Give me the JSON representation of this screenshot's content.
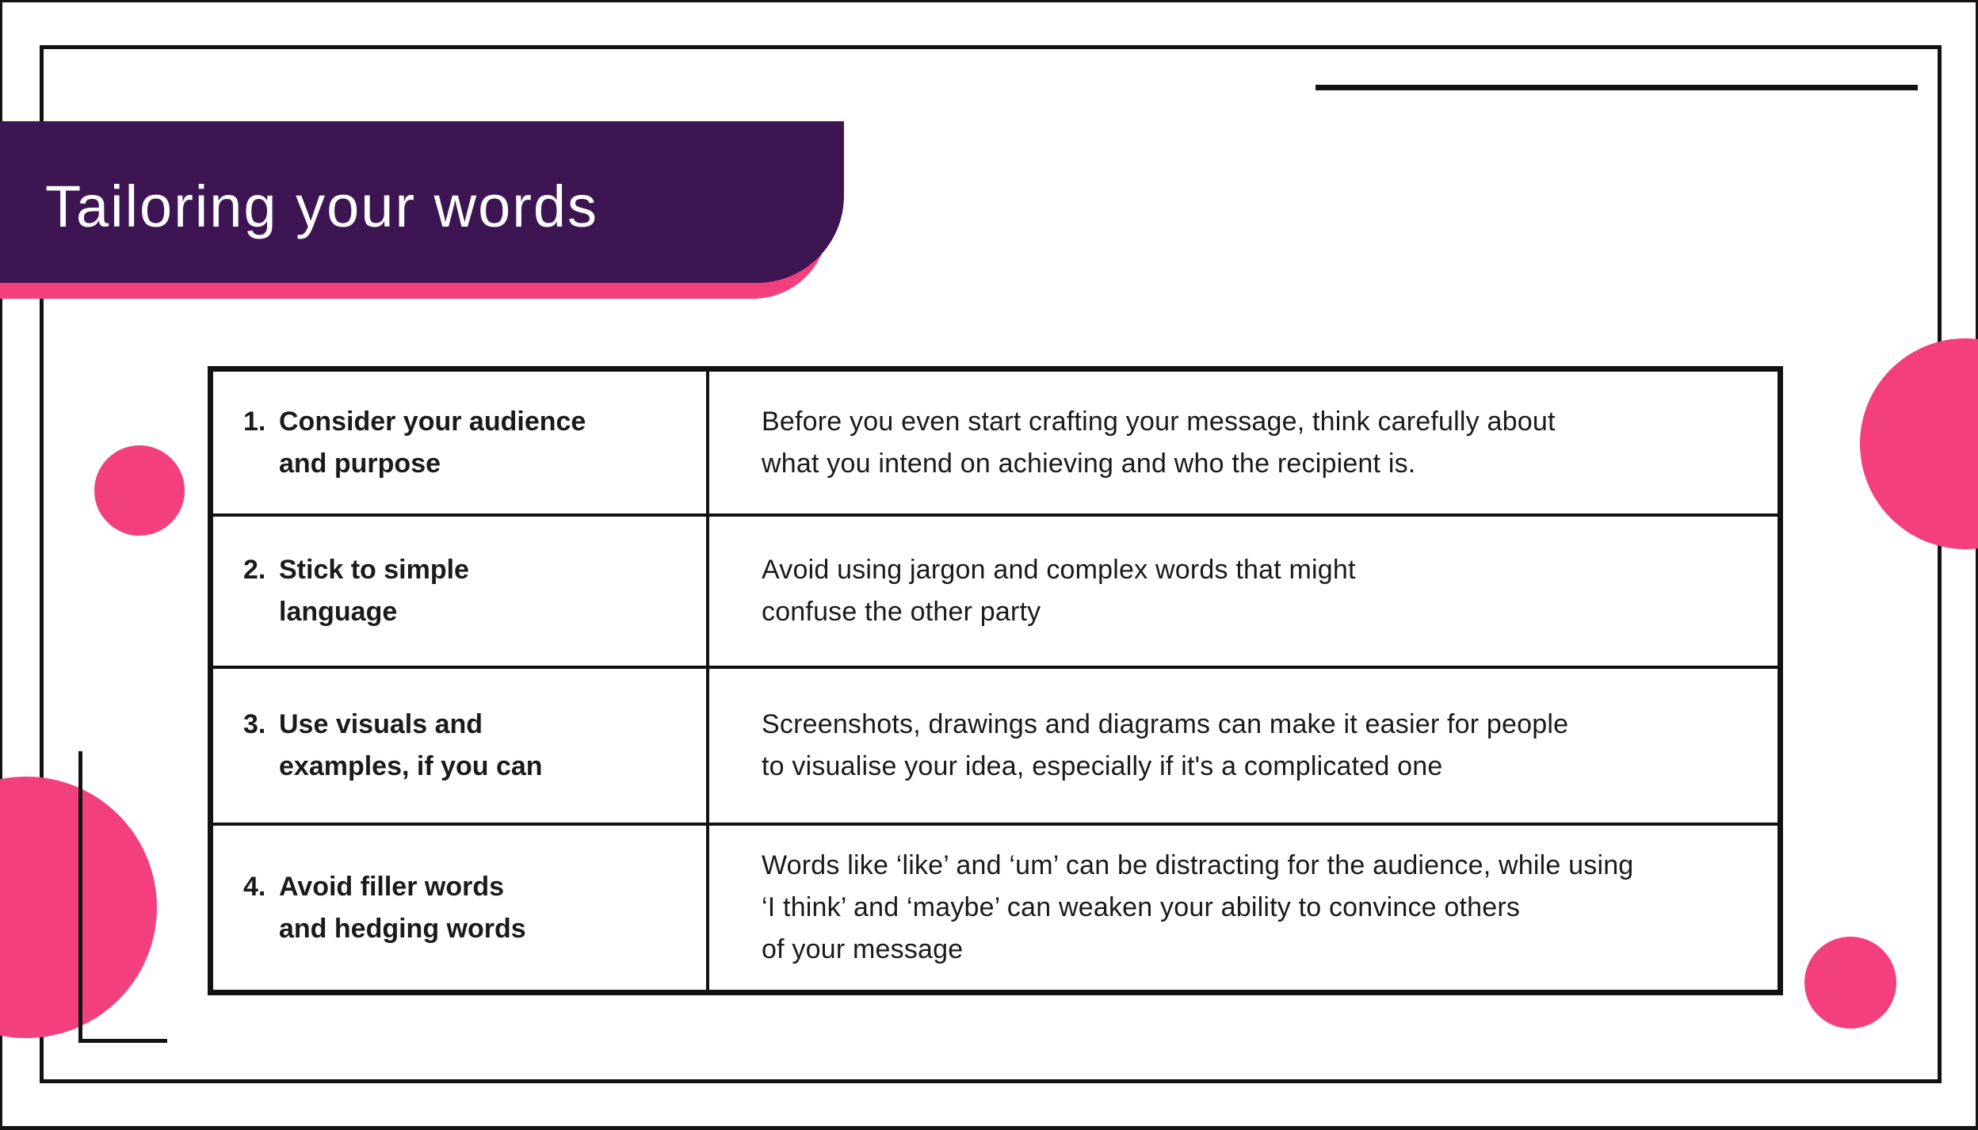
{
  "slide": {
    "title": "Tailoring your words",
    "colors": {
      "purple": "#3d1552",
      "pink": "#f43f7f",
      "line": "#121212"
    },
    "decorations": {
      "accent_line": "horizontal-rule-top-right",
      "corner_bracket": "bottom-left",
      "circles": [
        "left-small",
        "left-large-clipped",
        "right-large-clipped",
        "right-small"
      ]
    },
    "table": {
      "rows": [
        {
          "num": "1.",
          "heading": "Consider your audience\nand purpose",
          "body": "Before you even start crafting your message, think carefully about\nwhat you intend on achieving and who the recipient is."
        },
        {
          "num": "2.",
          "heading": "Stick to simple\nlanguage",
          "body": "Avoid using jargon and complex words that might\nconfuse the other party"
        },
        {
          "num": "3.",
          "heading": "Use visuals and\nexamples, if you can",
          "body": "Screenshots, drawings and diagrams can make it easier for people\nto visualise your idea, especially if it's a complicated one"
        },
        {
          "num": "4.",
          "heading": "Avoid filler words\nand hedging words",
          "body": "Words like ‘like’ and ‘um’ can be distracting for the audience, while using\n‘I think’ and ‘maybe’ can weaken your ability to convince others\nof your message"
        }
      ]
    }
  }
}
